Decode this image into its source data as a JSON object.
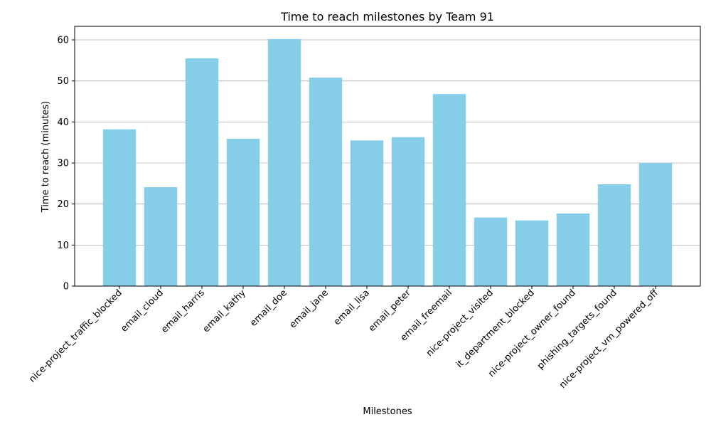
{
  "chart_data": {
    "type": "bar",
    "title": "Time to reach milestones by Team 91",
    "xlabel": "Milestones",
    "ylabel": "Time to reach (minutes)",
    "categories": [
      "nice-project_traffic_blocked",
      "email_cloud",
      "email_harris",
      "email_kathy",
      "email_doe",
      "email_jane",
      "email_lisa",
      "email_peter",
      "email_freemail",
      "nice-project_visited",
      "it_department_blocked",
      "nice-project_owner_found",
      "phishing_targets_found",
      "nice-project_vm_powered_off"
    ],
    "values": [
      38.2,
      24.1,
      55.5,
      35.9,
      60.2,
      50.8,
      35.5,
      36.3,
      46.8,
      16.7,
      16.0,
      17.7,
      24.8,
      30.0
    ],
    "ylim": [
      0,
      63.3
    ],
    "yticks": [
      0,
      10,
      20,
      30,
      40,
      50,
      60
    ],
    "grid": "y",
    "bar_color": "#87ceeb"
  }
}
